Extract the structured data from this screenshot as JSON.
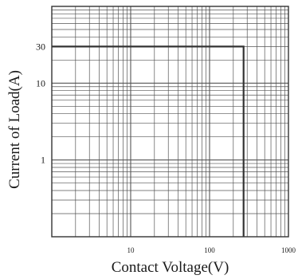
{
  "chart_data": {
    "type": "line",
    "title": "",
    "xlabel": "Contact Voltage(V)",
    "ylabel": "Current of Load(A)",
    "xscale": "log",
    "yscale": "log",
    "xlim": [
      1,
      1000
    ],
    "ylim": [
      0.1,
      100
    ],
    "x_ticks": [
      {
        "value": 10,
        "label": "10"
      },
      {
        "value": 100,
        "label": "100"
      },
      {
        "value": 1000,
        "label": "1000"
      }
    ],
    "y_ticks": [
      {
        "value": 1,
        "label": "1"
      },
      {
        "value": 10,
        "label": "10"
      },
      {
        "value": 30,
        "label": "30"
      }
    ],
    "grid": true,
    "series": [
      {
        "color": "#333333",
        "points": [
          {
            "x": 1,
            "y": 30
          },
          {
            "x": 270,
            "y": 30
          },
          {
            "x": 270,
            "y": 0.1
          }
        ]
      }
    ]
  }
}
